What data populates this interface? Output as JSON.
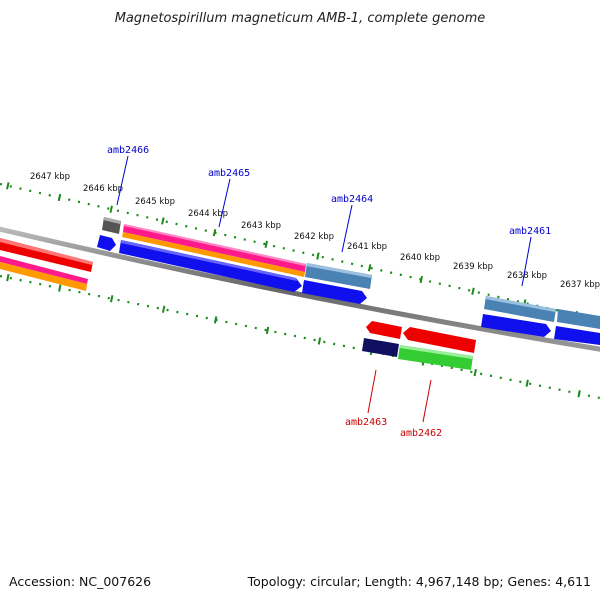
{
  "title": "Magnetospirillum magneticum AMB-1, complete genome",
  "footer": {
    "accession": "Accession: NC_007626",
    "summary": "Topology: circular; Length: 4,967,148 bp; Genes: 4,611"
  },
  "colors": {
    "backbone": "#777777",
    "tick": "#1a8a1a",
    "label_forward": "#0000cc",
    "label_reverse": "#cc0000",
    "red": "#ee0000",
    "pink": "#ff1a8c",
    "orange": "#ff9900",
    "blue": "#1010ee",
    "steel": "#4a82b4",
    "navy": "#101060",
    "green": "#33cc33",
    "gray": "#555555"
  },
  "kbp_labels": [
    "2647 kbp",
    "2646 kbp",
    "2645 kbp",
    "2644 kbp",
    "2643 kbp",
    "2642 kbp",
    "2641 kbp",
    "2640 kbp",
    "2639 kbp",
    "2638 kbp",
    "2637 kbp"
  ],
  "genes_top": [
    {
      "name": "amb2466"
    },
    {
      "name": "amb2465"
    },
    {
      "name": "amb2464"
    },
    {
      "name": "amb2461"
    }
  ],
  "genes_bottom": [
    {
      "name": "amb2463"
    },
    {
      "name": "amb2462"
    }
  ]
}
